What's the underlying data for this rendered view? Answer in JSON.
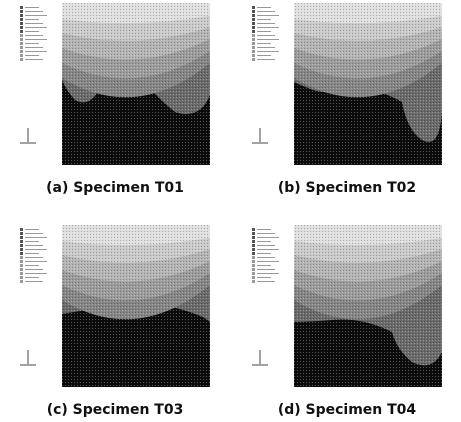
{
  "figure": {
    "panels": [
      {
        "caption": "(a) Specimen T01"
      },
      {
        "caption": "(b) Specimen T02"
      },
      {
        "caption": "(c) Specimen T03"
      },
      {
        "caption": "(d) Specimen T04"
      }
    ]
  }
}
